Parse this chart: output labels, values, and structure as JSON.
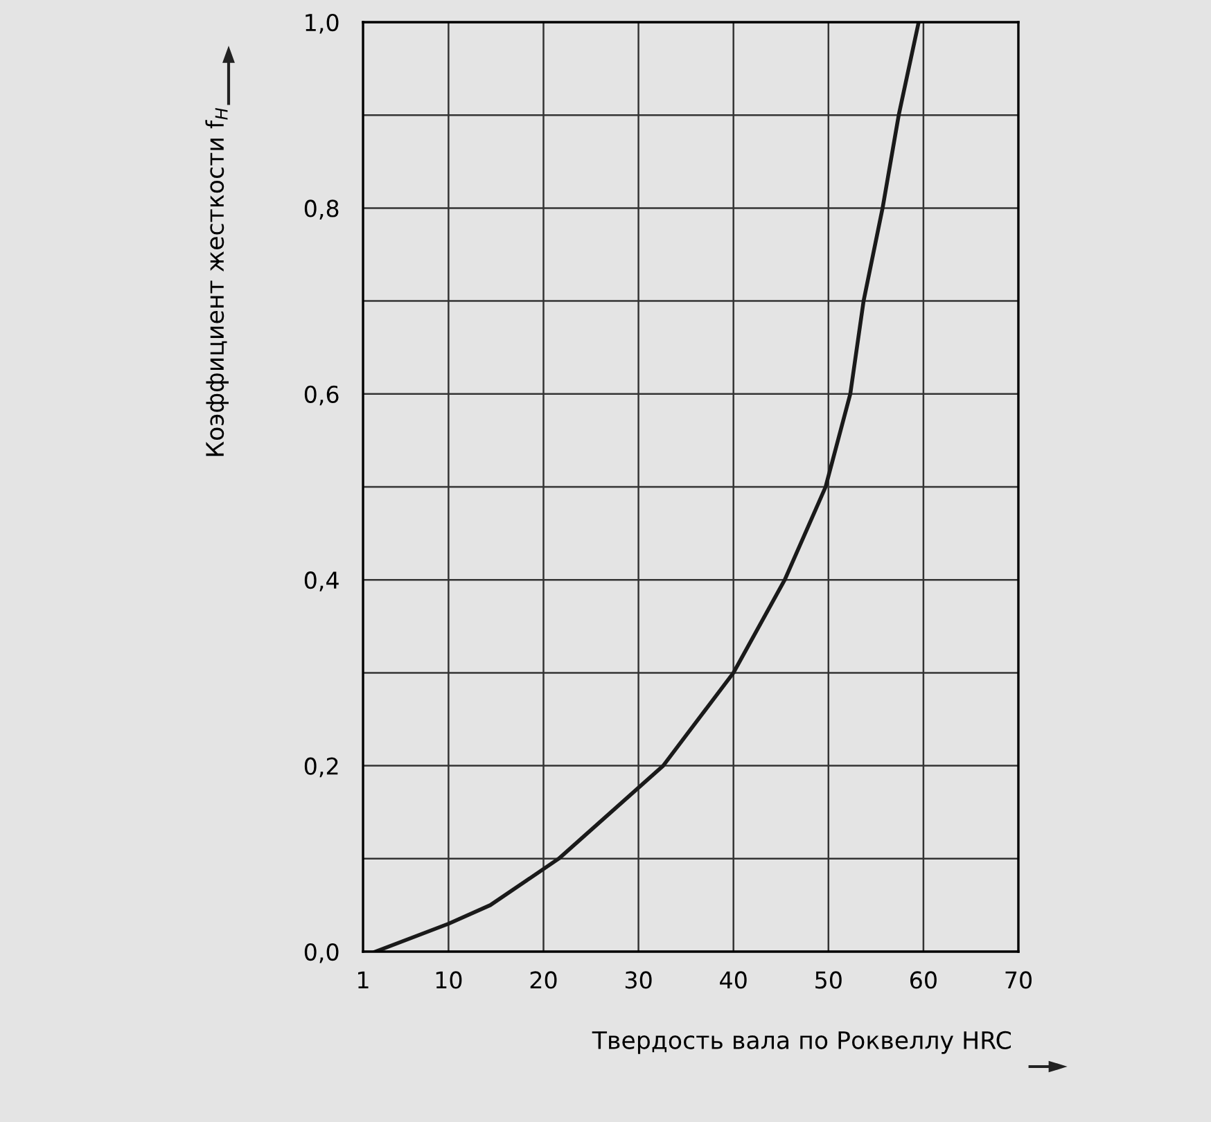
{
  "chart_data": {
    "type": "line",
    "xlabel": "Твердость вала по Роквеллу HRC",
    "ylabel": "Коэффициент жесткости f$_{H}$",
    "x": [
      2.3,
      10,
      14.4,
      21.6,
      32.6,
      40,
      45.4,
      49.7,
      52.3,
      53.7,
      55.7,
      57.4,
      59.5
    ],
    "series": [
      {
        "color": "#1a1a1a",
        "values": [
          0,
          0.03,
          0.05,
          0.1,
          0.2,
          0.3,
          0.4,
          0.5,
          0.6,
          0.7,
          0.8,
          0.9,
          1.0
        ]
      }
    ],
    "xlim": [
      1,
      70
    ],
    "xticks": [
      1,
      10,
      20,
      30,
      40,
      50,
      60,
      70
    ],
    "ylim": [
      0,
      1.0
    ],
    "yticks": [
      {
        "value": 0,
        "label": "0,0"
      },
      {
        "value": 0.1,
        "label": null
      },
      {
        "value": 0.2,
        "label": "0,2"
      },
      {
        "value": 0.3,
        "label": null
      },
      {
        "value": 0.4,
        "label": "0,4"
      },
      {
        "value": 0.5,
        "label": null
      },
      {
        "value": 0.6,
        "label": "0,6"
      },
      {
        "value": 0.7,
        "label": null
      },
      {
        "value": 0.8,
        "label": "0,8"
      },
      {
        "value": 0.9,
        "label": null
      },
      {
        "value": 1.0,
        "label": "1,0"
      }
    ],
    "grid": true,
    "marker": "none",
    "line_style": "solid",
    "legend": false
  }
}
